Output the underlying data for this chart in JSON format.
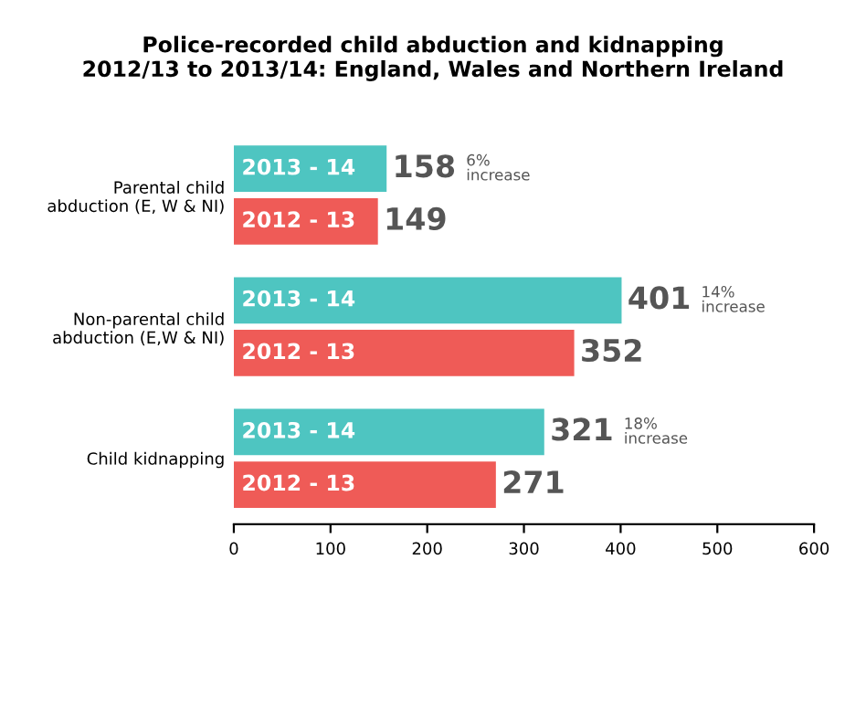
{
  "chart_data": {
    "type": "bar",
    "orientation": "horizontal",
    "title": "Police-recorded child abduction and kidnapping\n2012/13 to 2013/14: England, Wales and Northern Ireland",
    "categories": [
      "Parental child\nabduction (E, W & NI)",
      "Non-parental child\nabduction (E,W & NI)",
      "Child kidnapping"
    ],
    "series": [
      {
        "name": "2013 - 14",
        "color": "#4ec5c1",
        "values": [
          158,
          401,
          321
        ]
      },
      {
        "name": "2012 - 13",
        "color": "#ef5b57",
        "values": [
          149,
          352,
          271
        ]
      }
    ],
    "data_labels": true,
    "annotations": [
      "6% increase",
      "14% increase",
      "18% increase"
    ],
    "xlim": [
      0,
      600
    ],
    "xticks": [
      0,
      100,
      200,
      300,
      400,
      500,
      600
    ],
    "grid": false,
    "legend": false
  }
}
